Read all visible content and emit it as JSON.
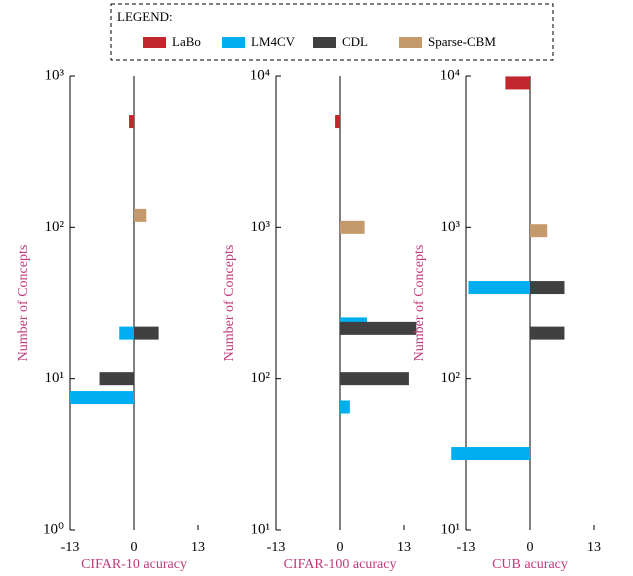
{
  "legend": {
    "title": "LEGEND:",
    "entries": [
      {
        "name": "LaBo",
        "color": "#c1272d"
      },
      {
        "name": "LM4CV",
        "color": "#00aeef"
      },
      {
        "name": "CDL",
        "color": "#404040"
      },
      {
        "name": "Sparse-CBM",
        "color": "#c49a6c"
      }
    ]
  },
  "chart_data": [
    {
      "type": "bar",
      "orientation": "horizontal",
      "y_scale": "log",
      "x_label": "CIFAR-10 acuracy",
      "y_label": "Number of Concepts",
      "xlim": [
        -13,
        13
      ],
      "xticks": [
        -13,
        0,
        13
      ],
      "ylim": [
        1,
        1000
      ],
      "yticks": [
        {
          "value": 1,
          "label": "10⁰"
        },
        {
          "value": 10,
          "label": "10¹"
        },
        {
          "value": 100,
          "label": "10²"
        },
        {
          "value": 1000,
          "label": "10³"
        }
      ],
      "series": [
        {
          "concepts": [
            500
          ],
          "values": [
            -1
          ]
        },
        {
          "concepts": [
            20,
            7.5
          ],
          "values": [
            -3,
            -13
          ]
        },
        {
          "concepts": [
            20,
            10
          ],
          "values": [
            5,
            -7
          ]
        },
        {
          "concepts": [
            120
          ],
          "values": [
            2.5
          ]
        }
      ]
    },
    {
      "type": "bar",
      "orientation": "horizontal",
      "y_scale": "log",
      "x_label": "CIFAR-100 acuracy",
      "y_label": "Number of Concepts",
      "xlim": [
        -13,
        13
      ],
      "xticks": [
        -13,
        0,
        13
      ],
      "ylim": [
        10,
        10000
      ],
      "yticks": [
        {
          "value": 10,
          "label": "10¹"
        },
        {
          "value": 100,
          "label": "10²"
        },
        {
          "value": 1000,
          "label": "10³"
        },
        {
          "value": 10000,
          "label": "10⁴"
        }
      ],
      "series": [
        {
          "concepts": [
            5000
          ],
          "values": [
            -1
          ]
        },
        {
          "concepts": [
            230,
            65
          ],
          "values": [
            5.5,
            2
          ]
        },
        {
          "concepts": [
            215,
            100
          ],
          "values": [
            15.5,
            14
          ]
        },
        {
          "concepts": [
            1000
          ],
          "values": [
            5
          ]
        }
      ]
    },
    {
      "type": "bar",
      "orientation": "horizontal",
      "y_scale": "log",
      "x_label": "CUB acuracy",
      "y_label": "Number of Concepts",
      "xlim": [
        -13,
        13
      ],
      "xticks": [
        -13,
        0,
        13
      ],
      "ylim": [
        10,
        10000
      ],
      "yticks": [
        {
          "value": 10,
          "label": "10¹"
        },
        {
          "value": 100,
          "label": "10²"
        },
        {
          "value": 1000,
          "label": "10³"
        },
        {
          "value": 10000,
          "label": "10⁴"
        }
      ],
      "series": [
        {
          "concepts": [
            9000
          ],
          "values": [
            -5
          ]
        },
        {
          "concepts": [
            400,
            32
          ],
          "values": [
            -12.5,
            -16
          ]
        },
        {
          "concepts": [
            400,
            200
          ],
          "values": [
            7,
            7
          ]
        },
        {
          "concepts": [
            950
          ],
          "values": [
            3.5
          ]
        }
      ]
    }
  ]
}
